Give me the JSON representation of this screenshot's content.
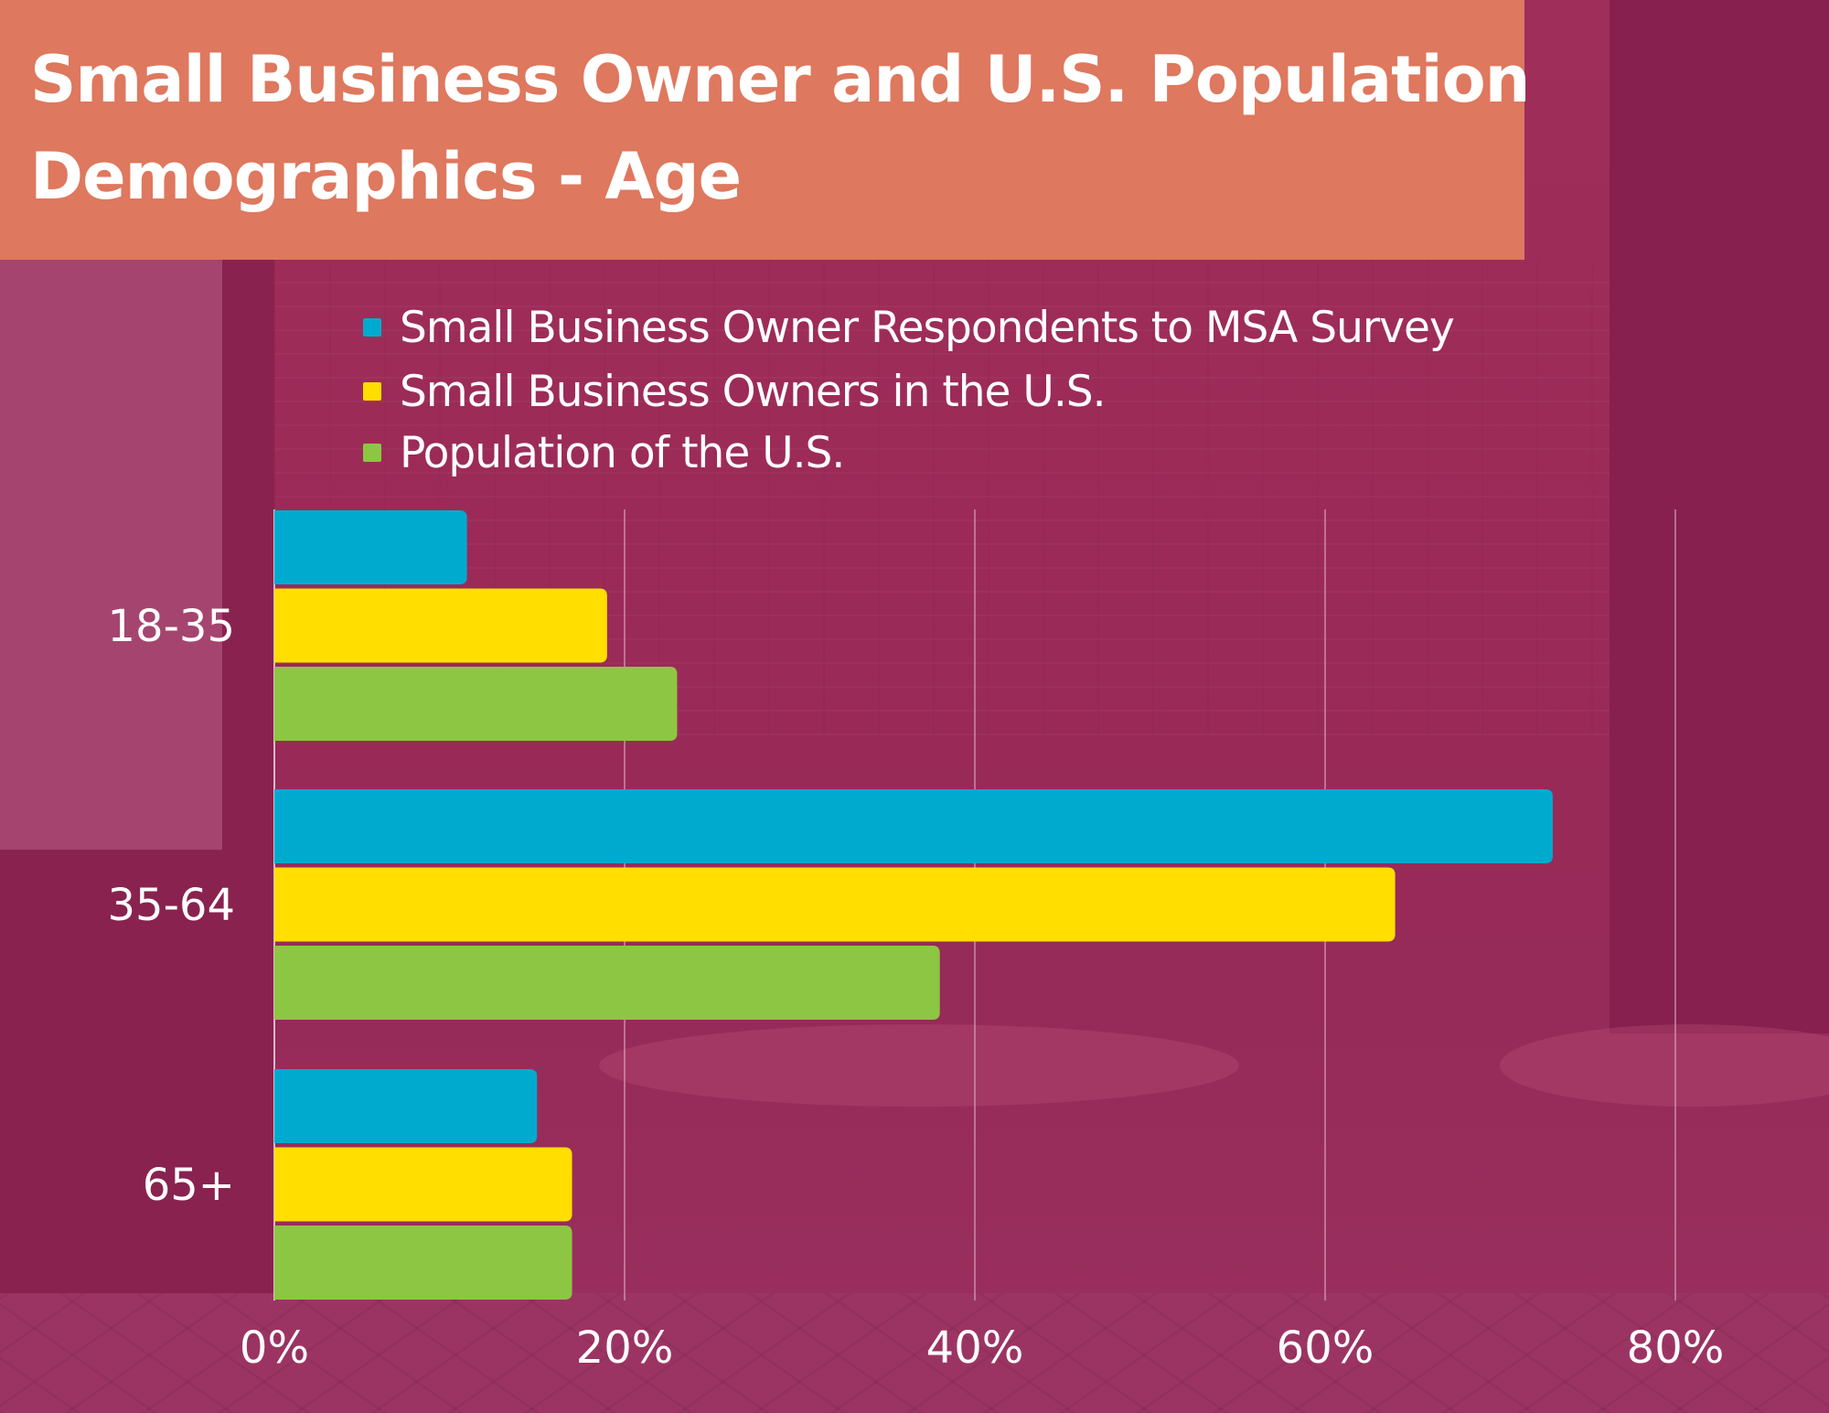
{
  "title": {
    "line1": "Small Business Owner and U.S. Population",
    "line2": "Demographics - Age"
  },
  "colors": {
    "banner": "#DE785E",
    "series": [
      "#00AACF",
      "#FFDE00",
      "#8DC642"
    ],
    "gridline": "#D9A3BB",
    "text": "#FFFFFF"
  },
  "legend": [
    {
      "label": "Small Business Owner Respondents to MSA Survey",
      "color": "#00AACF"
    },
    {
      "label": "Small Business Owners in the U.S.",
      "color": "#FFDE00"
    },
    {
      "label": "Population of the U.S.",
      "color": "#8DC642"
    }
  ],
  "chart_data": {
    "type": "bar",
    "orientation": "horizontal",
    "title": "Small Business Owner and U.S. Population Demographics - Age",
    "categories": [
      "18-35",
      "35-64",
      "65+"
    ],
    "series": [
      {
        "name": "Small Business Owner Respondents to MSA Survey",
        "values": [
          11,
          73,
          15
        ]
      },
      {
        "name": "Small Business Owners in the U.S.",
        "values": [
          19,
          64,
          17
        ]
      },
      {
        "name": "Population of the U.S.",
        "values": [
          23,
          38,
          17
        ]
      }
    ],
    "xlabel": "",
    "ylabel": "",
    "xlim": [
      0,
      80
    ],
    "x_ticks": [
      "0%",
      "20%",
      "40%",
      "60%",
      "80%"
    ],
    "x_tick_values": [
      0,
      20,
      40,
      60,
      80
    ],
    "value_unit": "%",
    "grid": "vertical",
    "legend_position": "top"
  }
}
